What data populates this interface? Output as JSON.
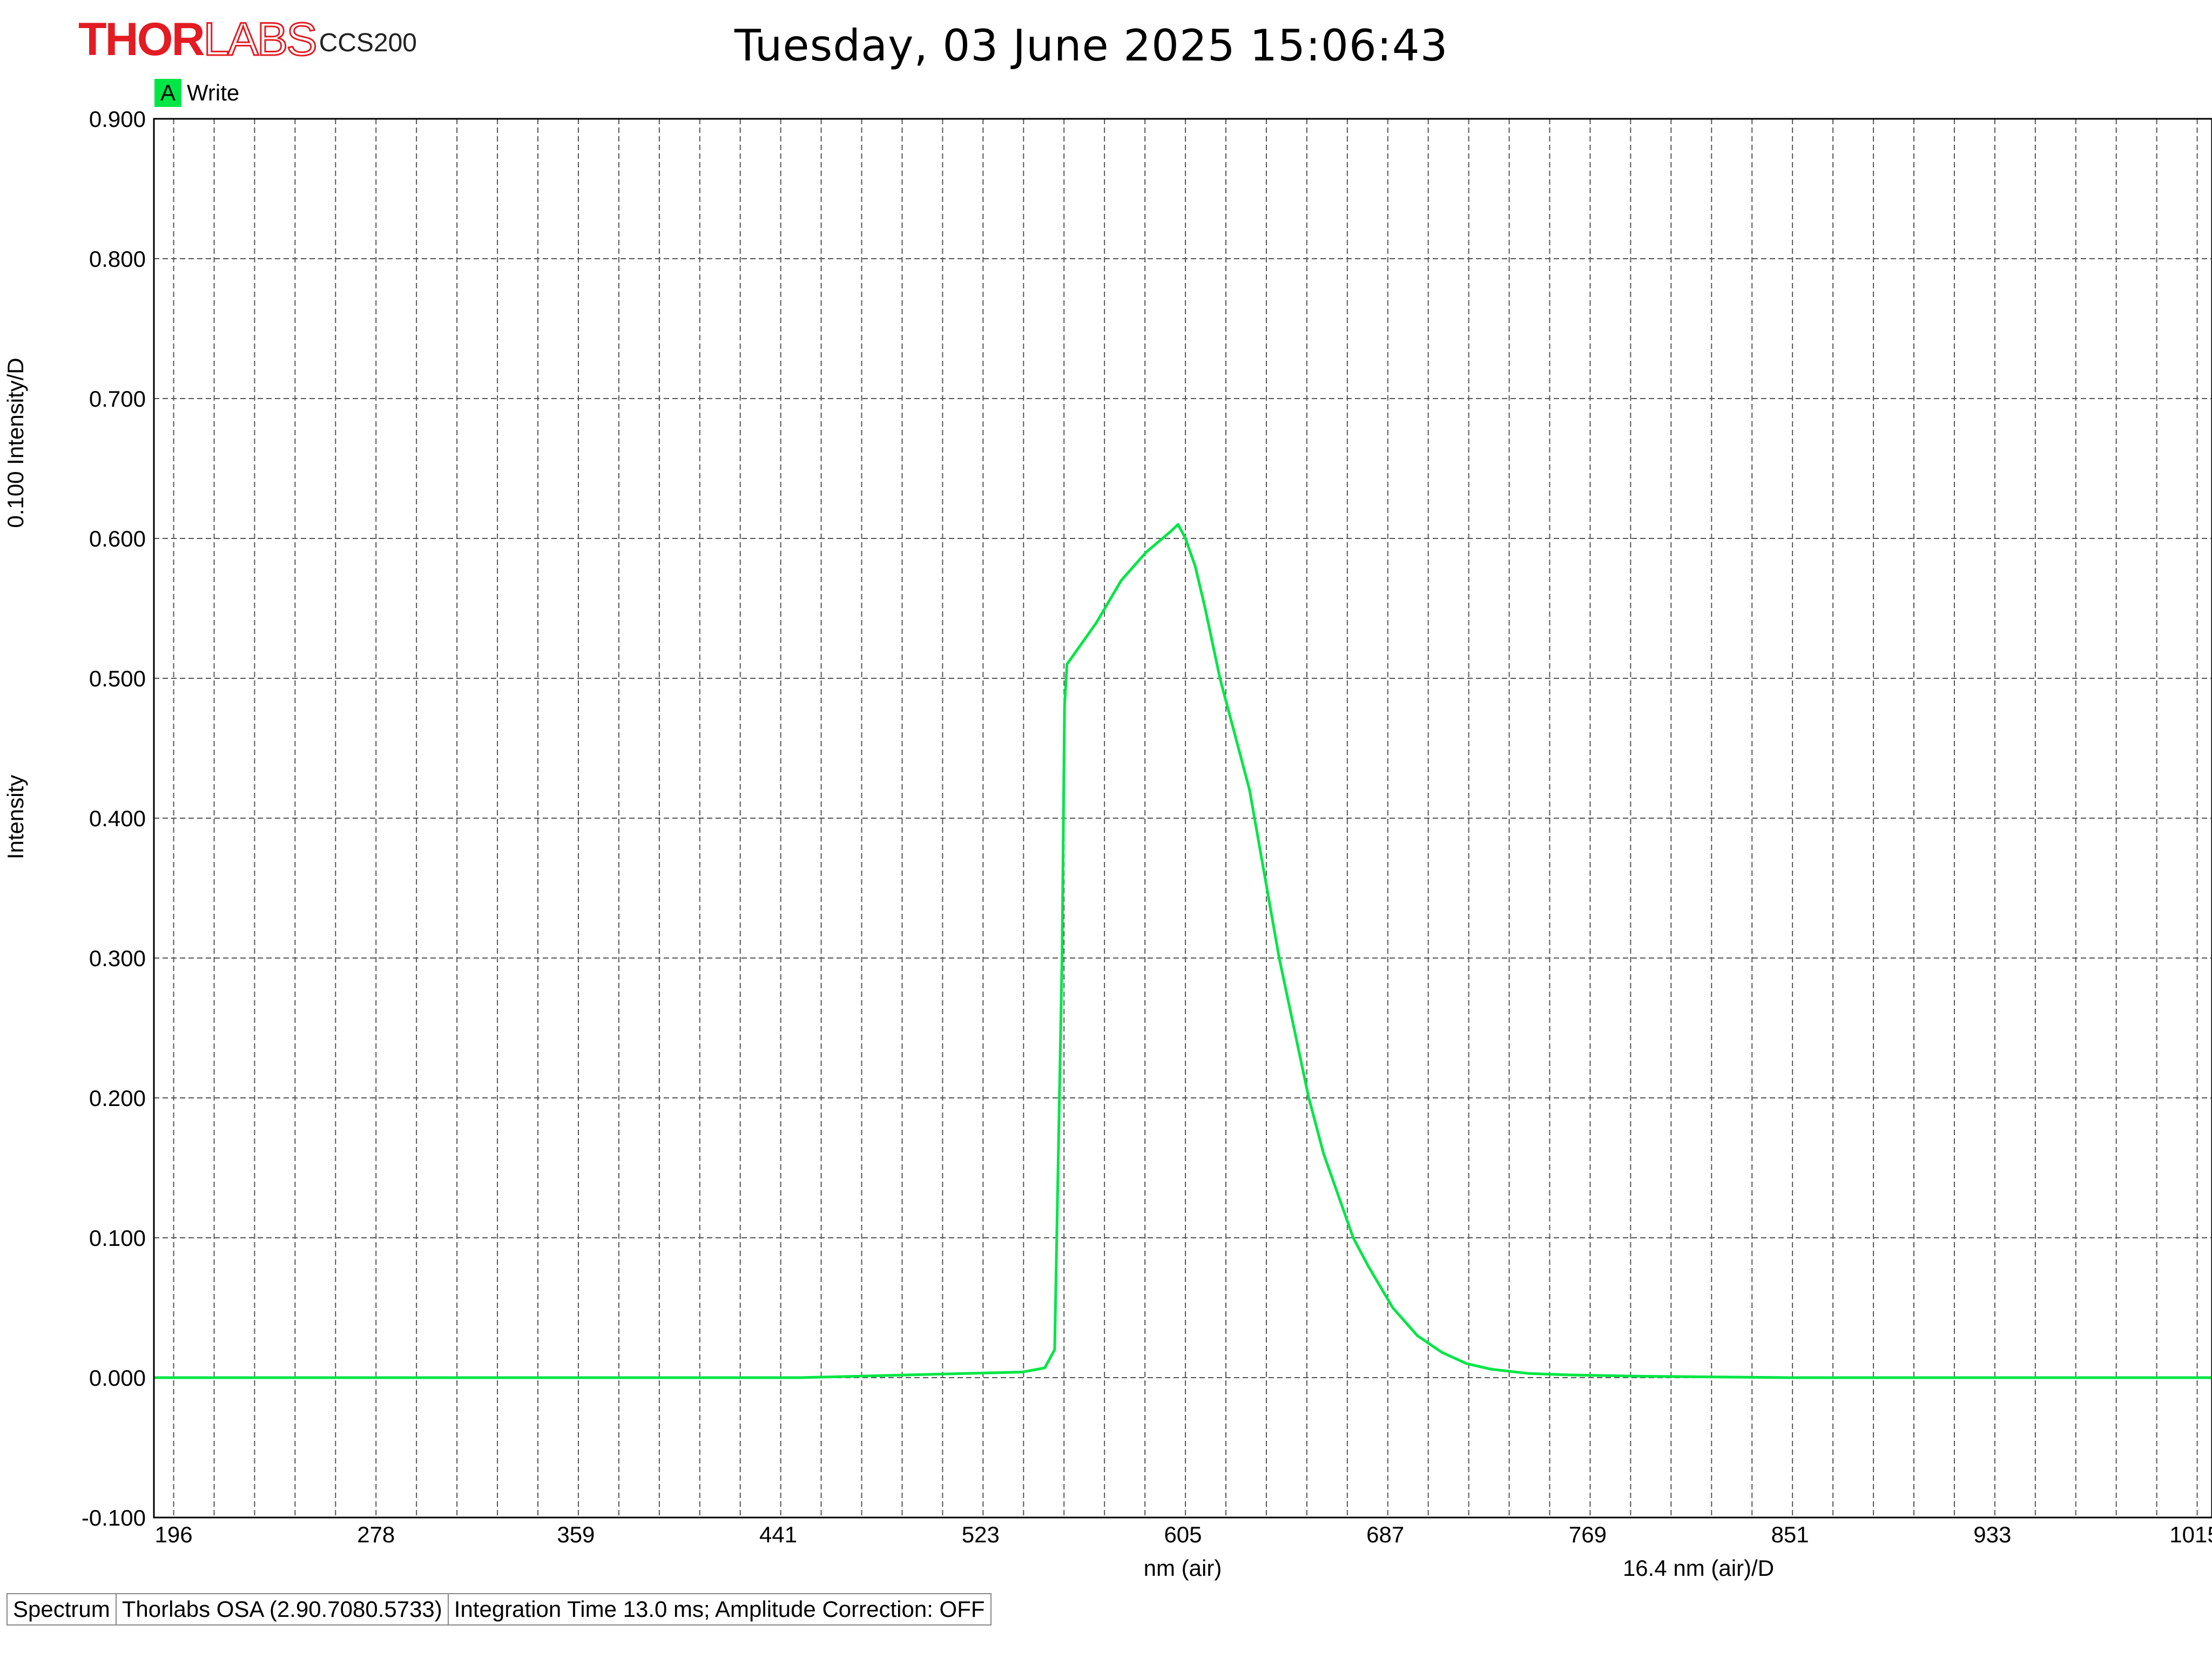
{
  "header": {
    "brand": "THORLABS",
    "model": "CCS200",
    "timestamp": "Tuesday, 03 June 2025 15:06:43"
  },
  "legend": {
    "marker": "A",
    "label": "Write",
    "color": "#00e645"
  },
  "statusbar": {
    "mode": "Spectrum",
    "software": "Thorlabs OSA (2.90.7080.5733)",
    "info": "Integration Time 13.0 ms; Amplitude Correction: OFF"
  },
  "chart_data": {
    "type": "line",
    "xlabel": "nm (air)",
    "x_scale_label": "16.4 nm (air)/D",
    "ylabel": "Intensity",
    "y_scale_label": "0.100 Intensity/D",
    "xlim": [
      188,
      1022
    ],
    "ylim": [
      -0.1,
      0.9
    ],
    "x_major_ticks": [
      "196",
      "278",
      "359",
      "441",
      "523",
      "605",
      "687",
      "769",
      "851",
      "933",
      "1015"
    ],
    "y_ticks": [
      "0.900",
      "0.800",
      "0.700",
      "0.600",
      "0.500",
      "0.400",
      "0.300",
      "0.200",
      "0.100",
      "0.000",
      "-0.100"
    ],
    "x_grid_step": 16.4,
    "grid": true,
    "series": [
      {
        "name": "Write",
        "color": "#00e645",
        "x": [
          188,
          450,
          540,
          549,
          553,
          556,
          557,
          558,
          562,
          570,
          580,
          590,
          600,
          603,
          606,
          610,
          614,
          620,
          626,
          632,
          638,
          644,
          650,
          656,
          662,
          668,
          674,
          680,
          690,
          700,
          710,
          720,
          730,
          745,
          760,
          790,
          850,
          1022
        ],
        "y": [
          0.0,
          0.0,
          0.004,
          0.007,
          0.02,
          0.3,
          0.48,
          0.51,
          0.52,
          0.54,
          0.57,
          0.59,
          0.605,
          0.61,
          0.6,
          0.58,
          0.55,
          0.5,
          0.46,
          0.42,
          0.36,
          0.3,
          0.25,
          0.2,
          0.16,
          0.13,
          0.1,
          0.08,
          0.05,
          0.03,
          0.018,
          0.01,
          0.006,
          0.003,
          0.002,
          0.001,
          0.0,
          0.0
        ]
      }
    ]
  }
}
